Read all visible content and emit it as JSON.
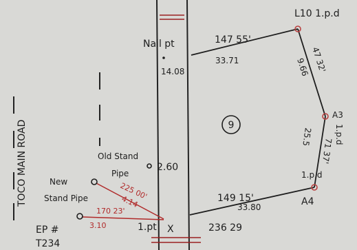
{
  "road": {
    "name": "TOCO MAIN ROAD"
  },
  "stations": {
    "nail": "Nail pt",
    "nail_offset": "14.08",
    "l10": "L10 1.p.d",
    "a3": "A3",
    "a3_suffix": "1.p.d",
    "a4": "A4",
    "a4_suffix": "1.p.d",
    "x_mark": "X",
    "x_label": "1.pt",
    "ep": "EP #",
    "ep_id": "T234"
  },
  "boundary": {
    "lines": [
      {
        "from": "Nail pt",
        "to": "L10",
        "bearing": "147 55'",
        "distance": "33.71"
      },
      {
        "from": "L10",
        "to": "A3",
        "bearing": "47 32'",
        "distance": "9.66"
      },
      {
        "from": "A3",
        "to": "A4",
        "bearing": "71 37'",
        "distance": "25.5"
      },
      {
        "from": "X",
        "to": "A4",
        "bearing": "149 15'",
        "distance": "33.80"
      }
    ],
    "closing_bearing": "236 29"
  },
  "lot": {
    "number": "9"
  },
  "features": {
    "old_stand_pipe_line1": "Old Stand",
    "old_stand_pipe_line2": "Pipe",
    "old_stand_pipe_offset": "2.60",
    "new_stand_pipe_line1": "New",
    "new_stand_pipe_line2": "Stand Pipe"
  },
  "ties": [
    {
      "bearing": "225 00'",
      "distance": "4.14"
    },
    {
      "bearing": "170 23'",
      "distance": "3.10"
    }
  ],
  "colors": {
    "paper": "#d9d9d6",
    "ink": "#1d1d1d",
    "red_ink": "#b02a2a",
    "peg": "#b84040"
  }
}
